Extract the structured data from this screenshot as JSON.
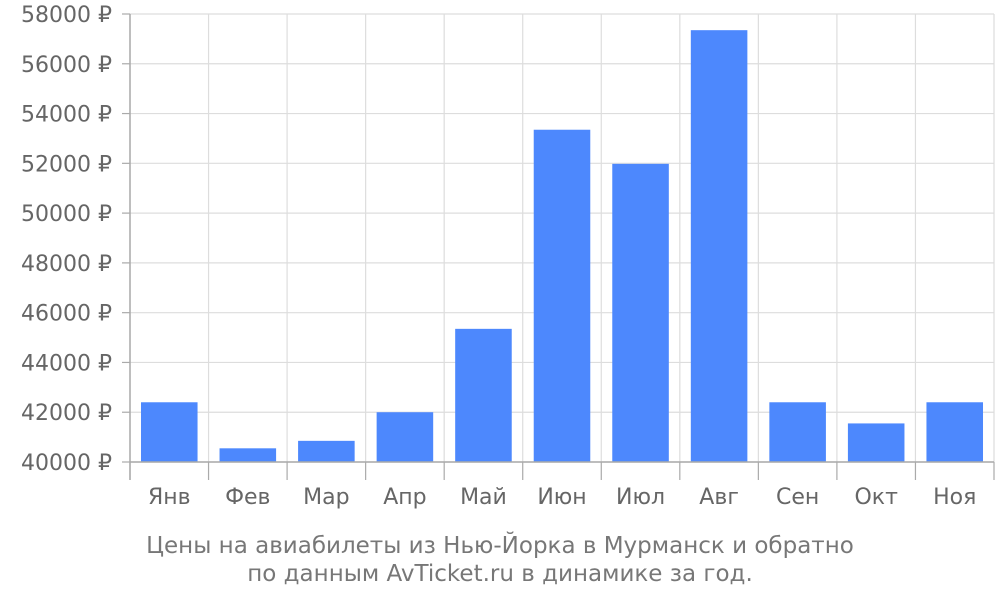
{
  "chart_data": {
    "type": "bar",
    "categories": [
      "Янв",
      "Фев",
      "Мар",
      "Апр",
      "Май",
      "Июн",
      "Июл",
      "Авг",
      "Сен",
      "Окт",
      "Ноя"
    ],
    "values": [
      42400,
      40550,
      40850,
      42000,
      45350,
      53350,
      51980,
      57350,
      42400,
      41550,
      42400
    ],
    "ylim": [
      40000,
      58000
    ],
    "yticks": [
      40000,
      42000,
      44000,
      46000,
      48000,
      50000,
      52000,
      54000,
      56000,
      58000
    ],
    "ytick_labels": [
      "40000 ₽",
      "42000 ₽",
      "44000 ₽",
      "46000 ₽",
      "48000 ₽",
      "50000 ₽",
      "52000 ₽",
      "54000 ₽",
      "56000 ₽",
      "58000 ₽"
    ],
    "title": "",
    "xlabel": "",
    "ylabel": "",
    "grid": true,
    "bar_color": "#4d88fd",
    "grid_color": "#dddddd",
    "axis_color": "#aaaaaa",
    "text_color": "#666666"
  },
  "caption": {
    "line1": "Цены на авиабилеты из Нью-Йорка в Мурманск и обратно",
    "line2": "по данным AvTicket.ru в динамике за год."
  }
}
